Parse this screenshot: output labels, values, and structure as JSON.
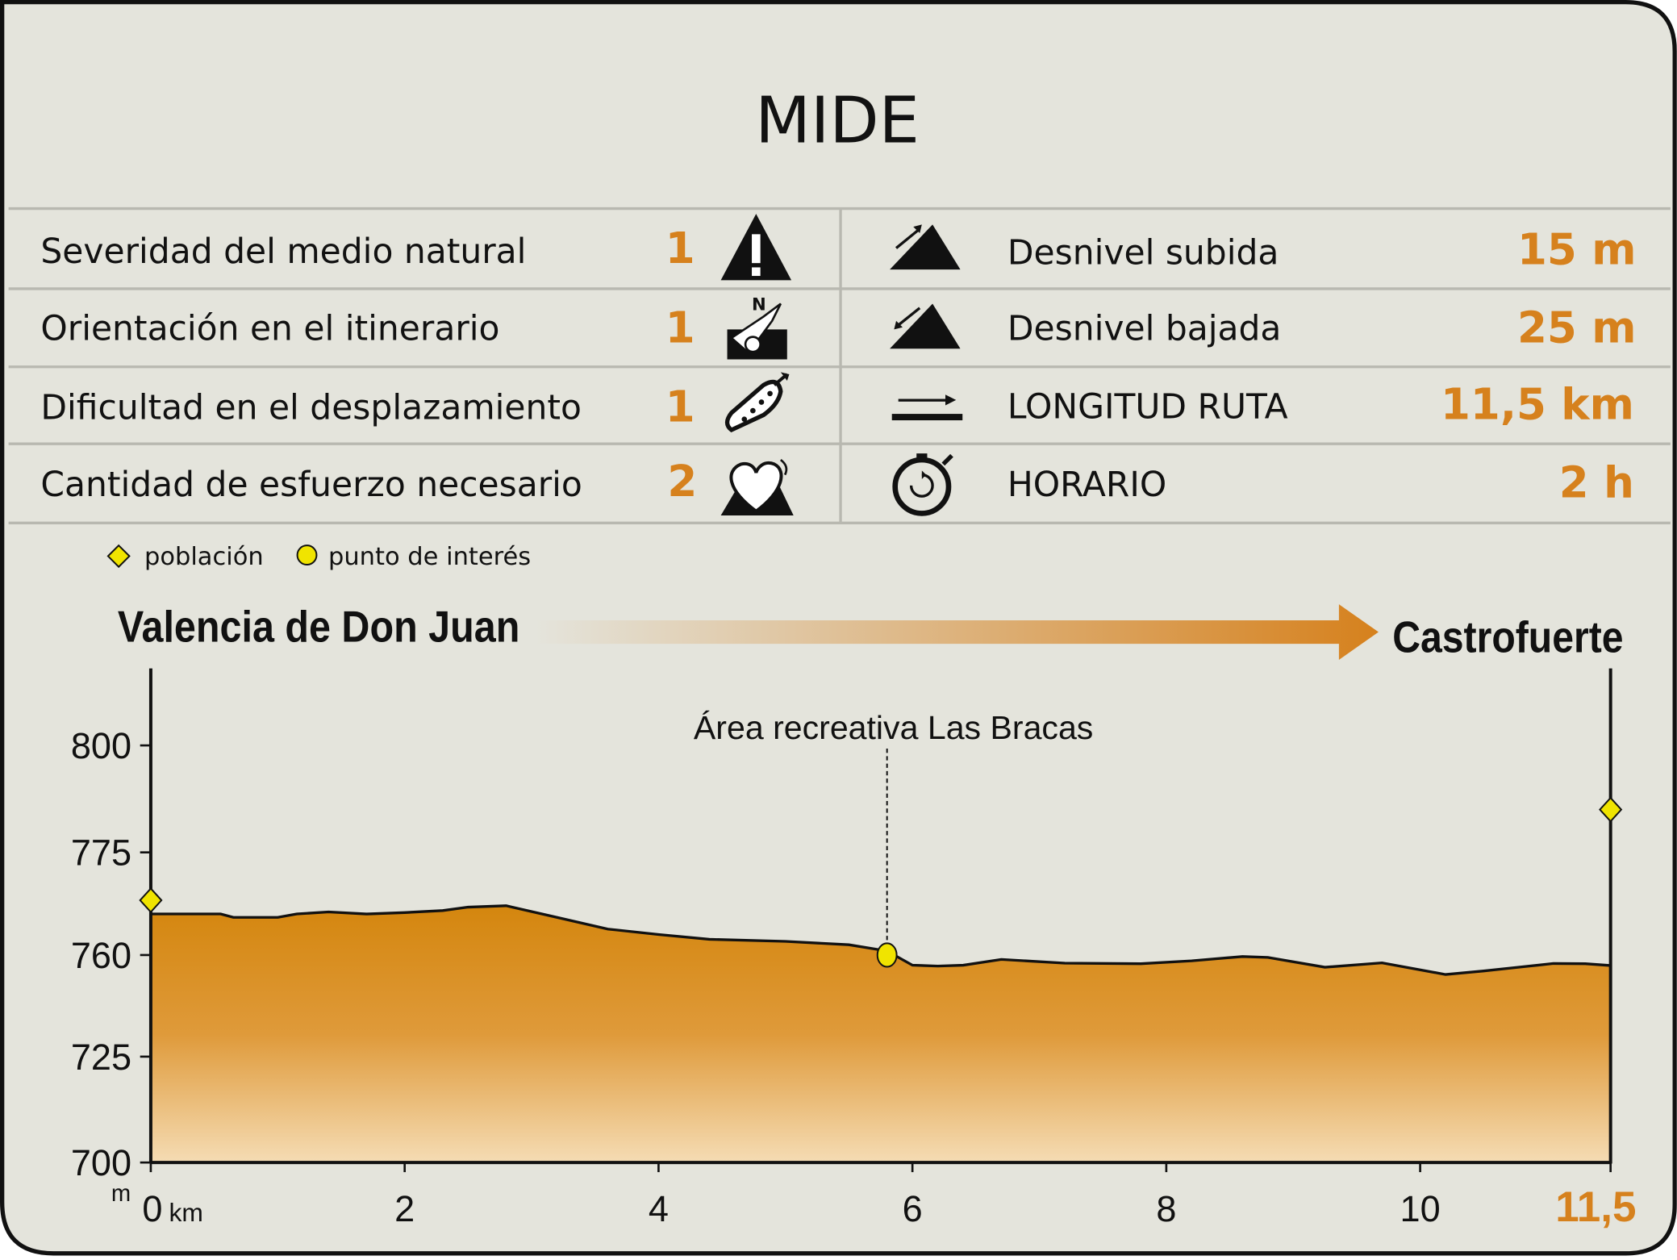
{
  "mide": {
    "title": "MIDE",
    "left_rows": [
      {
        "label": "Severidad del medio natural",
        "value": "1",
        "icon": "warning-icon"
      },
      {
        "label": "Orientación en el itinerario",
        "value": "1",
        "icon": "compass-orientation-icon"
      },
      {
        "label": "Dificultad en el desplazamiento",
        "value": "1",
        "icon": "footprint-icon"
      },
      {
        "label": "Cantidad de esfuerzo necesario",
        "value": "2",
        "icon": "heart-effort-icon"
      }
    ],
    "right_rows": [
      {
        "label": "Desnivel subida",
        "value": "15 m",
        "icon": "ascent-icon"
      },
      {
        "label": "Desnivel bajada",
        "value": "25 m",
        "icon": "descent-icon"
      },
      {
        "label": "LONGITUD RUTA",
        "value": "11,5 km",
        "icon": "distance-arrow-icon"
      },
      {
        "label": "HORARIO",
        "value": "2 h",
        "icon": "stopwatch-icon"
      }
    ]
  },
  "legend": {
    "town_label": "población",
    "poi_label": "punto de interés"
  },
  "route": {
    "start": "Valencia de Don Juan",
    "end": "Castrofuerte"
  },
  "colors": {
    "background": "#e4e4dc",
    "accent_orange": "#d6811d",
    "fill_top": "#d4860e",
    "fill_bottom": "#f5dcb4",
    "marker_yellow": "#f0e400",
    "grid_line": "#b8b8b0"
  },
  "chart_data": {
    "type": "area",
    "x_unit": "km",
    "y_unit": "m",
    "xlim": [
      0,
      11.5
    ],
    "ylim": [
      700,
      820
    ],
    "y_tick_values": [
      700,
      725,
      760,
      775,
      800
    ],
    "y_tick_labels": [
      "700",
      "725",
      "760",
      "775",
      "800"
    ],
    "x_tick_values": [
      0,
      2,
      4,
      6,
      8,
      10,
      11.5
    ],
    "x_tick_labels": [
      "0",
      "2",
      "4",
      "6",
      "8",
      "10",
      "11,5"
    ],
    "x_first_tick_unit": "km",
    "y_tick_unit": "m",
    "series": [
      {
        "x": [
          0,
          0.55,
          0.65,
          1.0,
          1.15,
          1.4,
          1.7,
          2.0,
          2.3,
          2.5,
          2.8,
          3.2,
          3.6,
          4.0,
          4.4,
          5.0,
          5.5,
          5.8,
          6.0,
          6.2,
          6.4,
          6.7,
          7.2,
          7.8,
          8.2,
          8.6,
          8.8,
          9.25,
          9.7,
          10.2,
          10.5,
          10.8,
          11.05,
          11.3,
          11.5
        ],
        "y": [
          766,
          766,
          765.5,
          765.5,
          766,
          766.3,
          766,
          766.2,
          766.5,
          767,
          767.2,
          765.5,
          763.8,
          763,
          762.3,
          762,
          761.5,
          760.6,
          756.5,
          756.2,
          756.5,
          758.5,
          757.2,
          757,
          758,
          759.5,
          759.2,
          755.8,
          757.3,
          753.3,
          754.5,
          755.9,
          757.1,
          757,
          756.4
        ]
      }
    ],
    "towns": [
      {
        "x": 0,
        "y": 768
      },
      {
        "x": 11.5,
        "y": 785
      }
    ],
    "points_of_interest": [
      {
        "x": 5.8,
        "y": 760,
        "label": "Área recreativa Las Bracas"
      }
    ]
  }
}
